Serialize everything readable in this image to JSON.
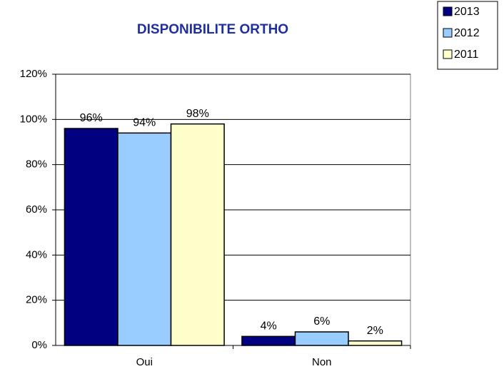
{
  "chart_data": {
    "type": "bar",
    "title": "DISPONIBILITE ORTHO",
    "categories": [
      "Oui",
      "Non"
    ],
    "series": [
      {
        "name": "2013",
        "color": "#000080",
        "values": [
          96,
          4
        ],
        "value_labels": [
          "96%",
          "4%"
        ]
      },
      {
        "name": "2012",
        "color": "#99ccff",
        "values": [
          94,
          6
        ],
        "value_labels": [
          "94%",
          "6%"
        ]
      },
      {
        "name": "2011",
        "color": "#ffffcc",
        "values": [
          98,
          2
        ],
        "value_labels": [
          "98%",
          "2%"
        ]
      }
    ],
    "ylim": [
      0,
      120
    ],
    "yticks": [
      {
        "value": 0,
        "label": "0%"
      },
      {
        "value": 20,
        "label": "20%"
      },
      {
        "value": 40,
        "label": "40%"
      },
      {
        "value": 60,
        "label": "60%"
      },
      {
        "value": 80,
        "label": "80%"
      },
      {
        "value": 100,
        "label": "100%"
      },
      {
        "value": 120,
        "label": "120%"
      }
    ],
    "grid": true,
    "legend": "top-right"
  }
}
